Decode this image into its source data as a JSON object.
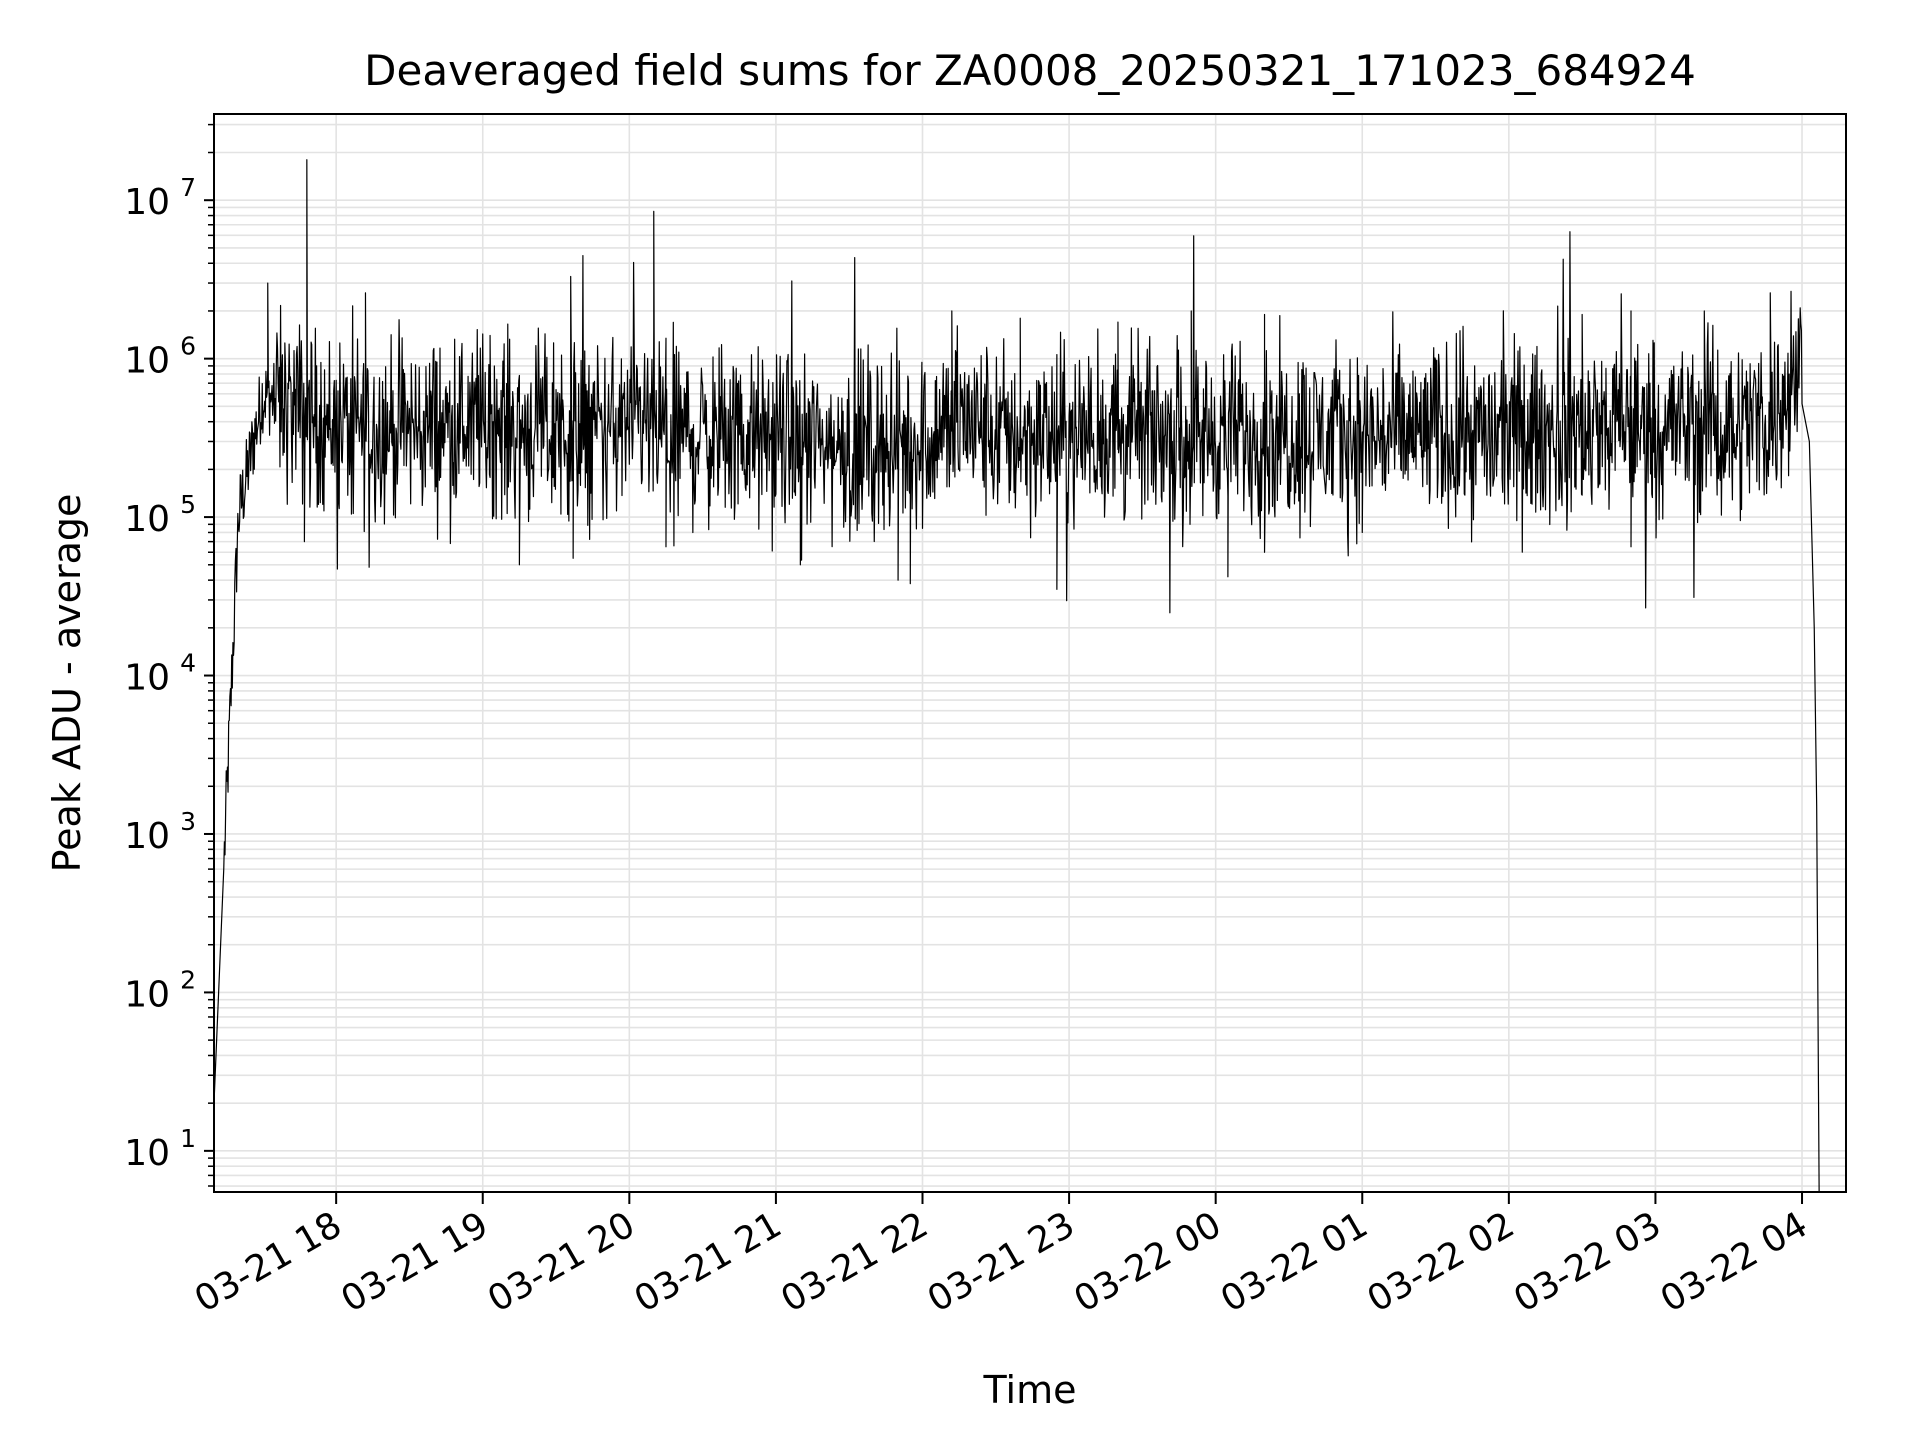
{
  "chart_data": {
    "type": "line",
    "title": "Deaveraged field sums for ZA0008_20250321_171023_684924",
    "xlabel": "Time",
    "ylabel": "Peak ADU - average",
    "y_scale": "log",
    "ylim": [
      5.5,
      35000000
    ],
    "xlim": [
      "2025-03-21 17:10",
      "2025-03-22 04:18"
    ],
    "x_ticks": [
      "03-21 18",
      "03-21 19",
      "03-21 20",
      "03-21 21",
      "03-21 22",
      "03-21 23",
      "03-22 00",
      "03-22 01",
      "03-22 02",
      "03-22 03",
      "03-22 04"
    ],
    "x_tick_times": [
      "2025-03-21 18:00",
      "2025-03-21 19:00",
      "2025-03-21 20:00",
      "2025-03-21 21:00",
      "2025-03-21 22:00",
      "2025-03-21 23:00",
      "2025-03-22 00:00",
      "2025-03-22 01:00",
      "2025-03-22 02:00",
      "2025-03-22 03:00",
      "2025-03-22 04:00"
    ],
    "y_ticks": [
      {
        "base": "10",
        "exp": "1",
        "value": 10
      },
      {
        "base": "10",
        "exp": "2",
        "value": 100
      },
      {
        "base": "10",
        "exp": "3",
        "value": 1000
      },
      {
        "base": "10",
        "exp": "4",
        "value": 10000
      },
      {
        "base": "10",
        "exp": "5",
        "value": 100000
      },
      {
        "base": "10",
        "exp": "6",
        "value": 1000000
      },
      {
        "base": "10",
        "exp": "7",
        "value": 10000000
      }
    ],
    "grid": true,
    "line_color": "#000000",
    "grid_color": "#e3e3e3",
    "series": [
      {
        "baseline": {
          "x": [
            "2025-03-21 17:10",
            "2025-03-21 17:20",
            "2025-03-21 17:30",
            "2025-03-21 17:40",
            "2025-03-21 17:50",
            "2025-03-21 18:00",
            "2025-03-21 18:30",
            "2025-03-21 19:00",
            "2025-03-21 19:30",
            "2025-03-21 20:00",
            "2025-03-21 20:30",
            "2025-03-21 21:00",
            "2025-03-21 21:30",
            "2025-03-21 22:00",
            "2025-03-21 22:15",
            "2025-03-21 22:30",
            "2025-03-21 23:00",
            "2025-03-21 23:30",
            "2025-03-22 00:00",
            "2025-03-22 00:30",
            "2025-03-22 01:00",
            "2025-03-22 01:30",
            "2025-03-22 02:00",
            "2025-03-22 02:30",
            "2025-03-22 03:00",
            "2025-03-22 03:30",
            "2025-03-22 03:50",
            "2025-03-22 04:00"
          ],
          "y": [
            20,
            100000,
            600000,
            500000,
            420000,
            380000,
            360000,
            400000,
            340000,
            370000,
            330000,
            300000,
            280000,
            300000,
            420000,
            330000,
            320000,
            340000,
            330000,
            340000,
            320000,
            340000,
            330000,
            350000,
            380000,
            370000,
            450000,
            900000
          ]
        },
        "spikes": {
          "x": [
            "2025-03-21 17:32",
            "2025-03-21 17:48",
            "2025-03-21 18:12",
            "2025-03-21 19:03",
            "2025-03-21 19:36",
            "2025-03-21 20:10",
            "2025-03-21 22:12",
            "2025-03-21 22:40",
            "2025-03-21 23:20",
            "2025-03-21 23:50",
            "2025-03-22 00:20",
            "2025-03-22 01:40",
            "2025-03-22 02:30",
            "2025-03-22 02:50",
            "2025-03-22 03:20",
            "2025-03-22 03:47"
          ],
          "y": [
            3000000,
            18000000,
            2600000,
            1400000,
            3300000,
            8500000,
            2000000,
            1800000,
            1700000,
            2000000,
            1900000,
            1500000,
            1900000,
            2000000,
            2000000,
            2600000
          ]
        },
        "dips": {
          "x": [
            "2025-03-21 17:47",
            "2025-03-21 19:15",
            "2025-03-21 19:37",
            "2025-03-21 20:15",
            "2025-03-21 21:10",
            "2025-03-21 21:50",
            "2025-03-21 21:55",
            "2025-03-21 22:55",
            "2025-03-22 00:05",
            "2025-03-22 00:20",
            "2025-03-22 01:00",
            "2025-03-22 02:50"
          ],
          "y": [
            70000,
            50000,
            55000,
            65000,
            50000,
            40000,
            38000,
            35000,
            42000,
            60000,
            80000,
            65000
          ]
        }
      }
    ]
  }
}
